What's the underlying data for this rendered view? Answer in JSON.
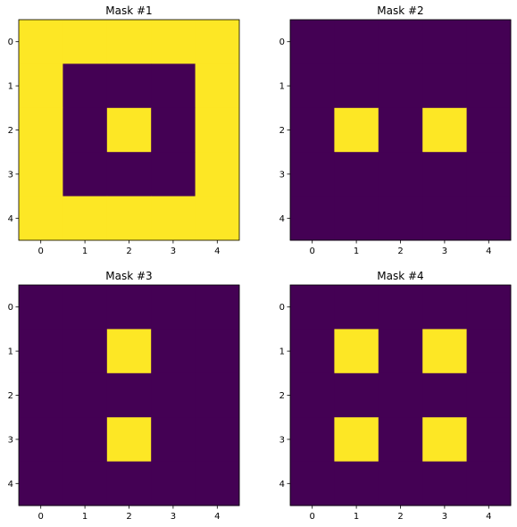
{
  "chart_data": [
    {
      "type": "heatmap",
      "title": "Mask #1",
      "xlabel": "",
      "ylabel": "",
      "x_ticks": [
        0,
        1,
        2,
        3,
        4
      ],
      "y_ticks": [
        0,
        1,
        2,
        3,
        4
      ],
      "xlim": [
        -0.5,
        4.5
      ],
      "ylim": [
        4.5,
        -0.5
      ],
      "grid": false,
      "colormap": {
        "0": "#440154",
        "1": "#fde725"
      },
      "values": [
        [
          1,
          1,
          1,
          1,
          1
        ],
        [
          1,
          0,
          0,
          0,
          1
        ],
        [
          1,
          0,
          1,
          0,
          1
        ],
        [
          1,
          0,
          0,
          0,
          1
        ],
        [
          1,
          1,
          1,
          1,
          1
        ]
      ]
    },
    {
      "type": "heatmap",
      "title": "Mask #2",
      "xlabel": "",
      "ylabel": "",
      "x_ticks": [
        0,
        1,
        2,
        3,
        4
      ],
      "y_ticks": [
        0,
        1,
        2,
        3,
        4
      ],
      "xlim": [
        -0.5,
        4.5
      ],
      "ylim": [
        4.5,
        -0.5
      ],
      "grid": false,
      "colormap": {
        "0": "#440154",
        "1": "#fde725"
      },
      "values": [
        [
          0,
          0,
          0,
          0,
          0
        ],
        [
          0,
          0,
          0,
          0,
          0
        ],
        [
          0,
          1,
          0,
          1,
          0
        ],
        [
          0,
          0,
          0,
          0,
          0
        ],
        [
          0,
          0,
          0,
          0,
          0
        ]
      ]
    },
    {
      "type": "heatmap",
      "title": "Mask #3",
      "xlabel": "",
      "ylabel": "",
      "x_ticks": [
        0,
        1,
        2,
        3,
        4
      ],
      "y_ticks": [
        0,
        1,
        2,
        3,
        4
      ],
      "xlim": [
        -0.5,
        4.5
      ],
      "ylim": [
        4.5,
        -0.5
      ],
      "grid": false,
      "colormap": {
        "0": "#440154",
        "1": "#fde725"
      },
      "values": [
        [
          0,
          0,
          0,
          0,
          0
        ],
        [
          0,
          0,
          1,
          0,
          0
        ],
        [
          0,
          0,
          0,
          0,
          0
        ],
        [
          0,
          0,
          1,
          0,
          0
        ],
        [
          0,
          0,
          0,
          0,
          0
        ]
      ]
    },
    {
      "type": "heatmap",
      "title": "Mask #4",
      "xlabel": "",
      "ylabel": "",
      "x_ticks": [
        0,
        1,
        2,
        3,
        4
      ],
      "y_ticks": [
        0,
        1,
        2,
        3,
        4
      ],
      "xlim": [
        -0.5,
        4.5
      ],
      "ylim": [
        4.5,
        -0.5
      ],
      "grid": false,
      "colormap": {
        "0": "#440154",
        "1": "#fde725"
      },
      "values": [
        [
          0,
          0,
          0,
          0,
          0
        ],
        [
          0,
          1,
          0,
          1,
          0
        ],
        [
          0,
          0,
          0,
          0,
          0
        ],
        [
          0,
          1,
          0,
          1,
          0
        ],
        [
          0,
          0,
          0,
          0,
          0
        ]
      ]
    }
  ]
}
